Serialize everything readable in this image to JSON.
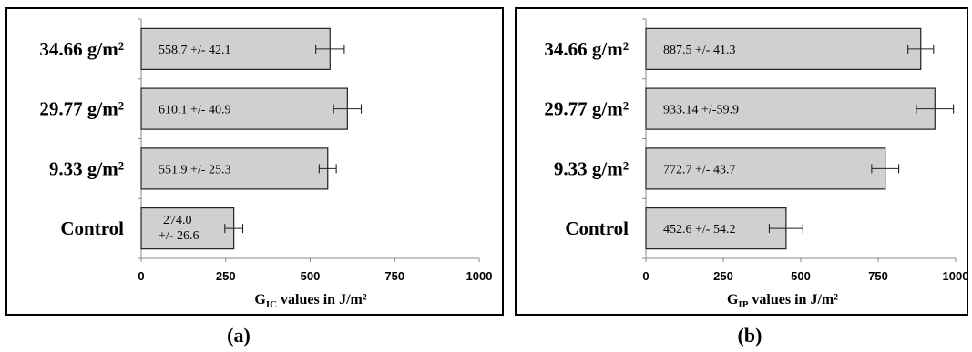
{
  "chart_data": [
    {
      "type": "bar",
      "orientation": "horizontal",
      "panel_label": "(a)",
      "categories": [
        "Control",
        "9.33 g/m²",
        "29.77 g/m²",
        "34.66 g/m²"
      ],
      "values": [
        274.0,
        551.9,
        610.1,
        558.7
      ],
      "errors": [
        26.6,
        25.3,
        40.9,
        42.1
      ],
      "data_labels": [
        [
          "274.0",
          "+/- 26.6"
        ],
        [
          "551.9 +/- 25.3"
        ],
        [
          "610.1 +/- 40.9"
        ],
        [
          "558.7 +/- 42.1"
        ]
      ],
      "xlabel_main": "G",
      "xlabel_sub": "IC",
      "xlabel_rest": " values in J/m²",
      "xlim": [
        0,
        1000
      ],
      "xticks": [
        "0",
        "250",
        "500",
        "750",
        "1000"
      ],
      "grid": false,
      "colors": {
        "bar": "#d0d0d0",
        "edge": "#222222"
      }
    },
    {
      "type": "bar",
      "orientation": "horizontal",
      "panel_label": "(b)",
      "categories": [
        "Control",
        "9.33 g/m²",
        "29.77 g/m²",
        "34.66  g/m²"
      ],
      "values": [
        452.6,
        772.7,
        933.14,
        887.5
      ],
      "errors": [
        54.2,
        43.7,
        59.9,
        41.3
      ],
      "data_labels": [
        [
          "452.6 +/- 54.2"
        ],
        [
          "772.7 +/- 43.7"
        ],
        [
          "933.14 +/-59.9"
        ],
        [
          "887.5 +/- 41.3"
        ]
      ],
      "xlabel_main": "G",
      "xlabel_sub": "IP",
      "xlabel_rest": " values in J/m²",
      "xlim": [
        0,
        1000
      ],
      "xticks": [
        "0",
        "250",
        "500",
        "750",
        "1000"
      ],
      "grid": false,
      "colors": {
        "bar": "#d0d0d0",
        "edge": "#222222"
      }
    }
  ]
}
